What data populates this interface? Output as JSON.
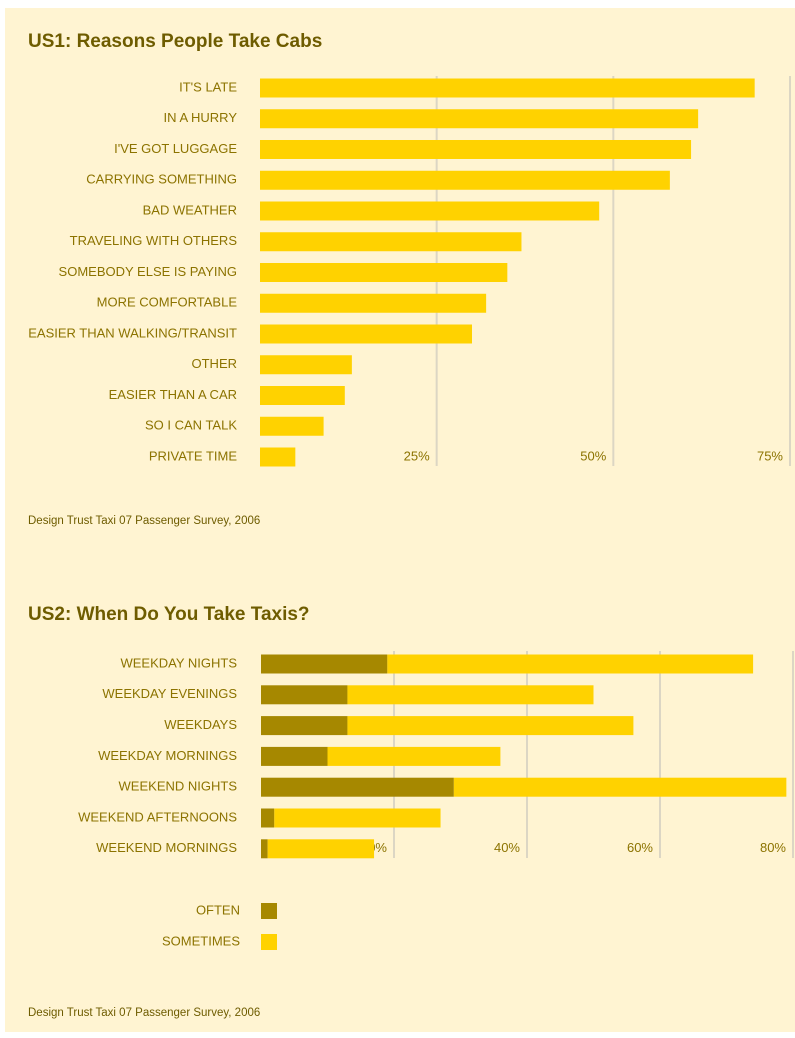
{
  "chart_data": [
    {
      "type": "bar",
      "title": "US1: Reasons People Take Cabs",
      "categories": [
        "IT'S LATE",
        "IN A HURRY",
        "I'VE GOT LUGGAGE",
        "CARRYING SOMETHING",
        "BAD WEATHER",
        "TRAVELING WITH OTHERS",
        "SOMEBODY ELSE IS PAYING",
        "MORE COMFORTABLE",
        "EASIER THAN WALKING/TRANSIT",
        "OTHER",
        "EASIER THAN A CAR",
        "SO I CAN TALK",
        "PRIVATE TIME"
      ],
      "values": [
        70,
        62,
        61,
        58,
        48,
        37,
        35,
        32,
        30,
        13,
        12,
        9,
        5
      ],
      "color": "#ffd200",
      "xlim": [
        0,
        75
      ],
      "xticks": [
        {
          "value": 25,
          "label": "25%"
        },
        {
          "value": 50,
          "label": "50%"
        },
        {
          "value": 75,
          "label": "75%"
        }
      ],
      "grid": true,
      "source": "Design Trust Taxi 07 Passenger Survey, 2006"
    },
    {
      "type": "bar",
      "stacked": true,
      "title": "US2: When Do You Take Taxis?",
      "categories": [
        "WEEKDAY NIGHTS",
        "WEEKDAY EVENINGS",
        "WEEKDAYS",
        "WEEKDAY MORNINGS",
        "WEEKEND NIGHTS",
        "WEEKEND AFTERNOONS",
        "WEEKEND MORNINGS"
      ],
      "series": [
        {
          "name": "OFTEN",
          "color": "#a68800",
          "values": [
            19,
            13,
            13,
            10,
            29,
            2,
            1
          ]
        },
        {
          "name": "SOMETIMES",
          "color": "#ffd200",
          "values": [
            55,
            37,
            43,
            26,
            50,
            25,
            16
          ]
        }
      ],
      "xlim": [
        0,
        80
      ],
      "xticks": [
        {
          "value": 20,
          "label": "20%"
        },
        {
          "value": 40,
          "label": "40%"
        },
        {
          "value": 60,
          "label": "60%"
        },
        {
          "value": 80,
          "label": "80%"
        }
      ],
      "grid": true,
      "source": "Design Trust Taxi 07 Passenger Survey, 2006"
    }
  ]
}
